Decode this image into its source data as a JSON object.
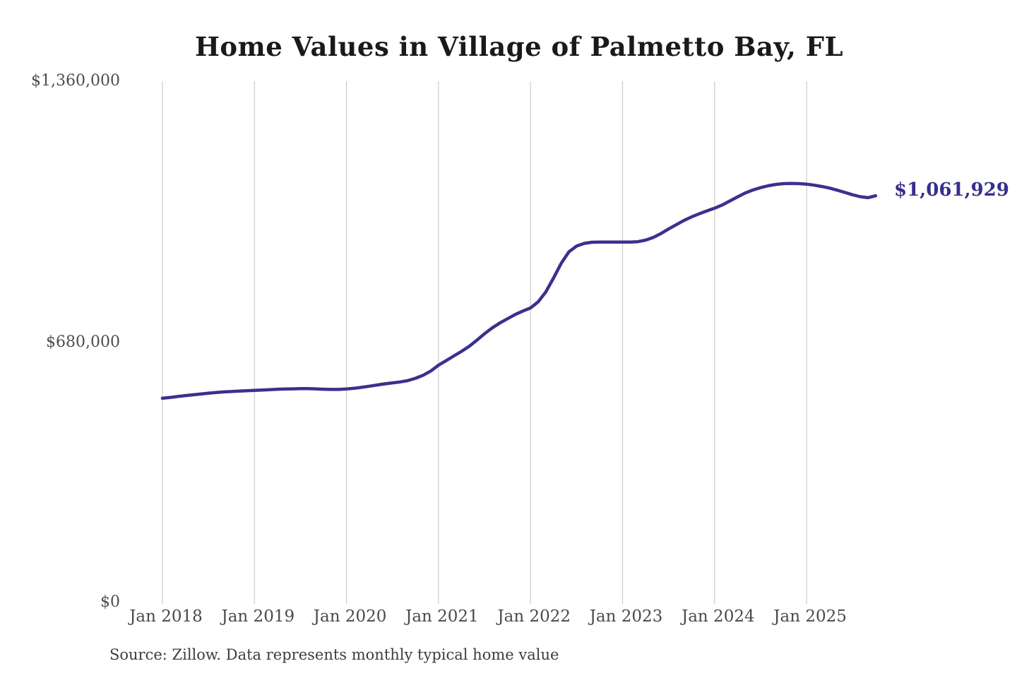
{
  "title": "Home Values in Village of Palmetto Bay, FL",
  "source_note": "Source: Zillow. Data represents monthly typical home value",
  "colors": {
    "line": "#39318f",
    "annotation": "#362f8c",
    "grid": "#cccccc",
    "title_text": "#1a1a1a",
    "axis_text": "#4a4a4a"
  },
  "chart_data": {
    "type": "line",
    "title": "Home Values in Village of Palmetto Bay, FL",
    "xlabel": "",
    "ylabel": "",
    "ylim": [
      0,
      1360000
    ],
    "grid": "vertical-only",
    "legend": "none",
    "annotation": {
      "text": "$1,061,929",
      "value": 1061929,
      "position": "end-of-line"
    },
    "y_ticks": [
      {
        "label": "$1,360,000",
        "value": 1360000
      },
      {
        "label": "$680,000",
        "value": 680000
      },
      {
        "label": "$0",
        "value": 0
      }
    ],
    "x_tick_labels": [
      "Jan 2018",
      "Jan 2019",
      "Jan 2020",
      "Jan 2021",
      "Jan 2022",
      "Jan 2023",
      "Jan 2024",
      "Jan 2025"
    ],
    "x": [
      "2018-01",
      "2018-02",
      "2018-03",
      "2018-04",
      "2018-05",
      "2018-06",
      "2018-07",
      "2018-08",
      "2018-09",
      "2018-10",
      "2018-11",
      "2018-12",
      "2019-01",
      "2019-02",
      "2019-03",
      "2019-04",
      "2019-05",
      "2019-06",
      "2019-07",
      "2019-08",
      "2019-09",
      "2019-10",
      "2019-11",
      "2019-12",
      "2020-01",
      "2020-02",
      "2020-03",
      "2020-04",
      "2020-05",
      "2020-06",
      "2020-07",
      "2020-08",
      "2020-09",
      "2020-10",
      "2020-11",
      "2020-12",
      "2021-01",
      "2021-02",
      "2021-03",
      "2021-04",
      "2021-05",
      "2021-06",
      "2021-07",
      "2021-08",
      "2021-09",
      "2021-10",
      "2021-11",
      "2021-12",
      "2022-01",
      "2022-02",
      "2022-03",
      "2022-04",
      "2022-05",
      "2022-06",
      "2022-07",
      "2022-08",
      "2022-09",
      "2022-10",
      "2022-11",
      "2022-12",
      "2023-01",
      "2023-02",
      "2023-03",
      "2023-04",
      "2023-05",
      "2023-06",
      "2023-07",
      "2023-08",
      "2023-09",
      "2023-10",
      "2023-11",
      "2023-12",
      "2024-01",
      "2024-02",
      "2024-03",
      "2024-04",
      "2024-05",
      "2024-06",
      "2024-07",
      "2024-08",
      "2024-09",
      "2024-10",
      "2024-11",
      "2024-12",
      "2025-01",
      "2025-02",
      "2025-03",
      "2025-04",
      "2025-05",
      "2025-06",
      "2025-07",
      "2025-08",
      "2025-09",
      "2025-10"
    ],
    "values": [
      535000,
      537000,
      539500,
      542000,
      544000,
      546000,
      548000,
      550000,
      551500,
      552500,
      553500,
      554500,
      555500,
      556500,
      557500,
      558500,
      559000,
      559500,
      560000,
      560000,
      559500,
      558500,
      558000,
      558000,
      559000,
      561000,
      563500,
      566500,
      569500,
      572500,
      575000,
      577500,
      581000,
      587000,
      595000,
      606000,
      621000,
      633000,
      645000,
      657000,
      670000,
      686000,
      703000,
      718000,
      731000,
      742000,
      753000,
      762000,
      770000,
      786000,
      812000,
      848000,
      886000,
      916000,
      931000,
      938000,
      941000,
      941500,
      941500,
      941500,
      941500,
      941500,
      942500,
      946500,
      953500,
      963500,
      975500,
      986500,
      997500,
      1007000,
      1015000,
      1022500,
      1029500,
      1038000,
      1048500,
      1059000,
      1069000,
      1077000,
      1083000,
      1088000,
      1091500,
      1093500,
      1094000,
      1093500,
      1092000,
      1089500,
      1086000,
      1082000,
      1076500,
      1070500,
      1064500,
      1059500,
      1057000,
      1061929
    ]
  }
}
